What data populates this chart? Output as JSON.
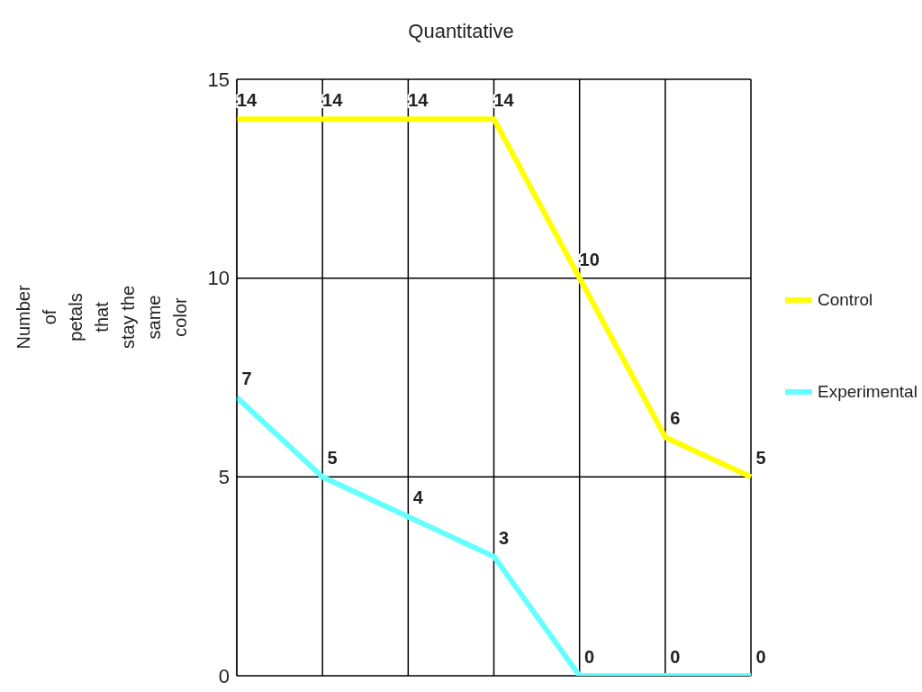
{
  "chart_data": {
    "type": "line",
    "title": "Quantitative",
    "ylabel": "Number of petals that stay the same color",
    "categories": [
      null,
      null,
      null,
      null,
      null,
      null,
      null
    ],
    "series": [
      {
        "name": "Control",
        "color": "#ffff00",
        "values": [
          14,
          14,
          14,
          14,
          10,
          6,
          5
        ]
      },
      {
        "name": "Experimental",
        "color": "#66ffff",
        "values": [
          7,
          5,
          4,
          3,
          0,
          0,
          0
        ]
      }
    ],
    "ylim": [
      0,
      15
    ],
    "yticks": [
      0,
      5,
      10,
      15
    ],
    "grid": true,
    "legend": "right",
    "data_labels": true,
    "marker": "none",
    "line_style": "solid"
  }
}
